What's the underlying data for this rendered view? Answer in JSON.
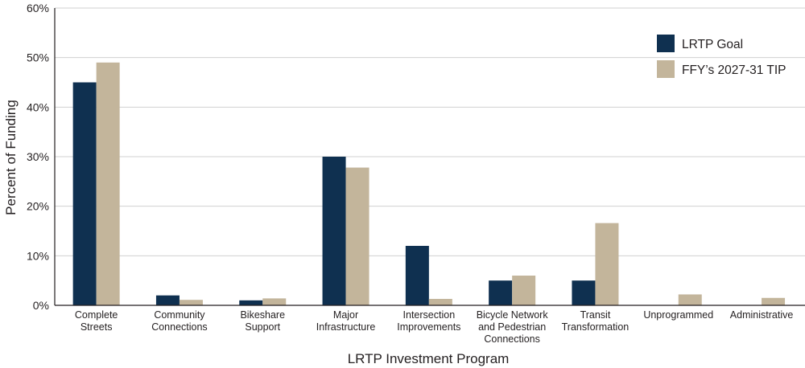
{
  "chart_data": {
    "type": "bar",
    "xlabel": "LRTP Investment Program",
    "ylabel": "Percent of Funding",
    "ylim": [
      0,
      60
    ],
    "yticks": [
      0,
      10,
      20,
      30,
      40,
      50,
      60
    ],
    "ytick_labels": [
      "0%",
      "10%",
      "20%",
      "30%",
      "40%",
      "50%",
      "60%"
    ],
    "grid": true,
    "legend_position": "top-right",
    "categories": [
      [
        "Complete",
        "Streets"
      ],
      [
        "Community",
        "Connections"
      ],
      [
        "Bikeshare",
        "Support"
      ],
      [
        "Major",
        "Infrastructure"
      ],
      [
        "Intersection",
        "Improvements"
      ],
      [
        "Bicycle Network",
        "and Pedestrian",
        "Connections"
      ],
      [
        "Transit",
        "Transformation"
      ],
      [
        "Unprogrammed"
      ],
      [
        "Administrative"
      ]
    ],
    "series": [
      {
        "name": "LRTP Goal",
        "color": "#0f3050",
        "values": [
          45,
          2,
          1,
          30,
          12,
          5,
          5,
          null,
          null
        ]
      },
      {
        "name": "FFY’s 2027-31 TIP",
        "color": "#c3b59b",
        "values": [
          49,
          1.1,
          1.4,
          27.8,
          1.3,
          6,
          16.6,
          2.2,
          1.5
        ]
      }
    ]
  }
}
